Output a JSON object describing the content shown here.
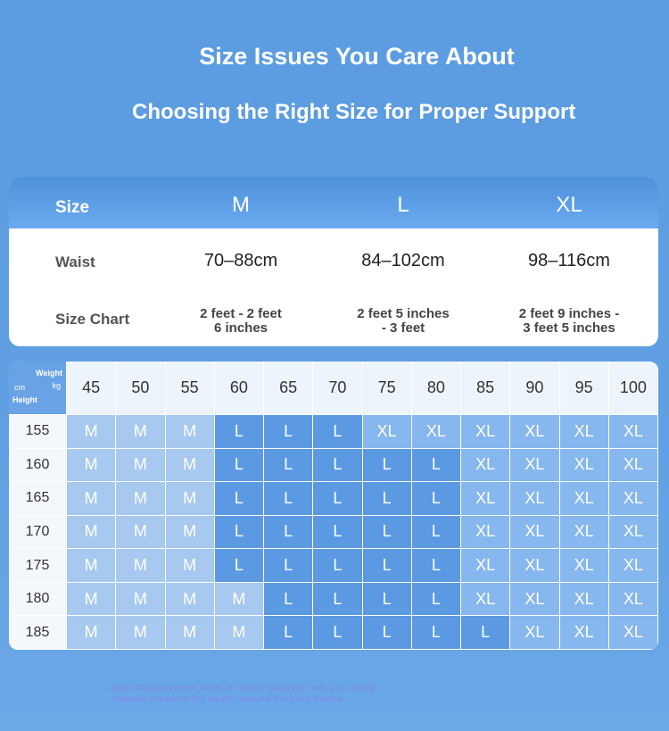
{
  "header": {
    "title": "Size Issues You Care About",
    "subtitle": "Choosing the Right Size for Proper Support"
  },
  "size_table": {
    "header": {
      "label": "Size",
      "sizes": [
        "M",
        "L",
        "XL"
      ]
    },
    "rows": [
      {
        "label": "Waist",
        "cells": [
          [
            "70–88cm"
          ],
          [
            "84–102cm"
          ],
          [
            "98–116cm"
          ]
        ]
      },
      {
        "label": "Size Chart",
        "cells": [
          [
            "2 feet - 2 feet",
            "6 inches"
          ],
          [
            "2 feet 5 inches",
            "- 3 feet"
          ],
          [
            "2 feet 9 inches -",
            "3 feet 5 inches"
          ]
        ]
      }
    ]
  },
  "grid": {
    "corner": {
      "weight": "Weight",
      "weight_unit": "kg",
      "height_unit": "cm",
      "height": "Height"
    },
    "weights": [
      "45",
      "50",
      "55",
      "60",
      "65",
      "70",
      "75",
      "80",
      "85",
      "90",
      "95",
      "100"
    ],
    "heights": [
      "155",
      "160",
      "165",
      "170",
      "175",
      "180",
      "185"
    ],
    "rows": [
      [
        "M",
        "M",
        "M",
        "L",
        "L",
        "L",
        "XL",
        "XL",
        "XL",
        "XL",
        "XL",
        "XL"
      ],
      [
        "M",
        "M",
        "M",
        "L",
        "L",
        "L",
        "L",
        "L",
        "XL",
        "XL",
        "XL",
        "XL"
      ],
      [
        "M",
        "M",
        "M",
        "L",
        "L",
        "L",
        "L",
        "L",
        "XL",
        "XL",
        "XL",
        "XL"
      ],
      [
        "M",
        "M",
        "M",
        "L",
        "L",
        "L",
        "L",
        "L",
        "XL",
        "XL",
        "XL",
        "XL"
      ],
      [
        "M",
        "M",
        "M",
        "L",
        "L",
        "L",
        "L",
        "L",
        "XL",
        "XL",
        "XL",
        "XL"
      ],
      [
        "M",
        "M",
        "M",
        "M",
        "L",
        "L",
        "L",
        "L",
        "XL",
        "XL",
        "XL",
        "XL"
      ],
      [
        "M",
        "M",
        "M",
        "M",
        "L",
        "L",
        "L",
        "L",
        "L",
        "XL",
        "XL",
        "XL"
      ]
    ]
  },
  "footnote": [
    "Waist Measurement Method: Stand naturally with your body",
    "relaxed, measure the length around the belly button."
  ]
}
